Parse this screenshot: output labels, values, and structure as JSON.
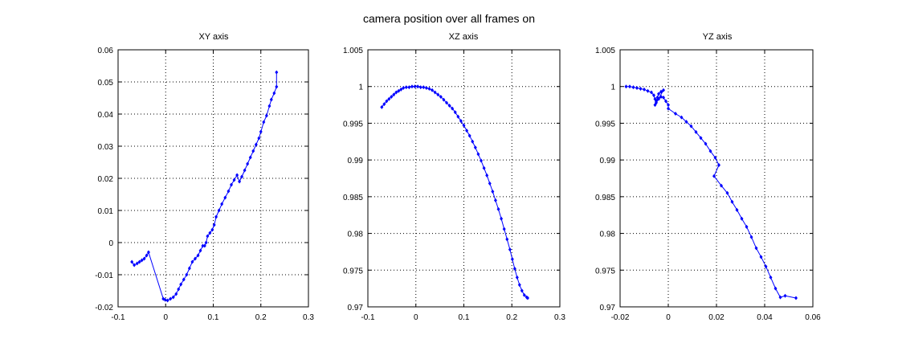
{
  "figure": {
    "title": "camera position over all frames on"
  },
  "chart_data": [
    {
      "type": "line",
      "title": "XY axis",
      "xlabel": "",
      "ylabel": "",
      "xlim": [
        -0.1,
        0.3
      ],
      "ylim": [
        -0.02,
        0.06
      ],
      "xticks": [
        "-0.1",
        "0",
        "0.1",
        "0.2",
        "0.3"
      ],
      "yticks": [
        "-0.02",
        "-0.01",
        "0",
        "0.01",
        "0.02",
        "0.03",
        "0.04",
        "0.05",
        "0.06"
      ],
      "grid": true,
      "marker": "dot",
      "color": "#0000ff",
      "series": [
        {
          "x": [
            0.233,
            0.233,
            0.228,
            0.222,
            0.218,
            0.212,
            0.206,
            0.2,
            0.196,
            0.19,
            0.184,
            0.178,
            0.172,
            0.166,
            0.16,
            0.155,
            0.15,
            0.144,
            0.138,
            0.132,
            0.125,
            0.118,
            0.112,
            0.106,
            0.102,
            0.098,
            0.093,
            0.088,
            0.085,
            0.082,
            0.078,
            0.073,
            0.068,
            0.062,
            0.056,
            0.05,
            0.044,
            0.038,
            0.032,
            0.027,
            0.022,
            0.016,
            0.01,
            0.004,
            -0.001,
            -0.005,
            -0.036,
            -0.04,
            -0.045,
            -0.05,
            -0.055,
            -0.06,
            -0.066,
            -0.071
          ],
          "y": [
            0.053,
            0.0485,
            0.0465,
            0.0445,
            0.0425,
            0.0395,
            0.0375,
            0.0345,
            0.0325,
            0.0305,
            0.0285,
            0.0265,
            0.0245,
            0.0225,
            0.0205,
            0.019,
            0.021,
            0.0195,
            0.018,
            0.016,
            0.014,
            0.012,
            0.01,
            0.008,
            0.0055,
            0.004,
            0.003,
            0.002,
            0.0,
            -0.001,
            -0.001,
            -0.0025,
            -0.004,
            -0.005,
            -0.006,
            -0.008,
            -0.01,
            -0.0115,
            -0.013,
            -0.0145,
            -0.016,
            -0.017,
            -0.0175,
            -0.018,
            -0.0178,
            -0.0175,
            -0.003,
            -0.004,
            -0.005,
            -0.0055,
            -0.006,
            -0.0065,
            -0.007,
            -0.006
          ]
        }
      ]
    },
    {
      "type": "line",
      "title": "XZ axis",
      "xlabel": "",
      "ylabel": "",
      "xlim": [
        -0.1,
        0.3
      ],
      "ylim": [
        0.97,
        1.005
      ],
      "xticks": [
        "-0.1",
        "0",
        "0.1",
        "0.2",
        "0.3"
      ],
      "yticks": [
        "0.97",
        "0.975",
        "0.98",
        "0.985",
        "0.99",
        "0.995",
        "1",
        "1.005"
      ],
      "grid": true,
      "marker": "dot",
      "color": "#0000ff",
      "series": [
        {
          "x": [
            -0.071,
            -0.066,
            -0.061,
            -0.056,
            -0.051,
            -0.046,
            -0.041,
            -0.036,
            -0.031,
            -0.026,
            -0.02,
            -0.014,
            -0.008,
            -0.002,
            0.004,
            0.01,
            0.016,
            0.022,
            0.028,
            0.034,
            0.04,
            0.046,
            0.052,
            0.058,
            0.064,
            0.07,
            0.076,
            0.082,
            0.088,
            0.094,
            0.1,
            0.106,
            0.112,
            0.118,
            0.124,
            0.13,
            0.136,
            0.142,
            0.148,
            0.154,
            0.16,
            0.166,
            0.172,
            0.178,
            0.184,
            0.19,
            0.196,
            0.201,
            0.206,
            0.211,
            0.216,
            0.221,
            0.226,
            0.231,
            0.233
          ],
          "y": [
            0.9972,
            0.9976,
            0.998,
            0.9983,
            0.9986,
            0.9989,
            0.9992,
            0.9994,
            0.9996,
            0.9998,
            0.9999,
            0.9999,
            1.0,
            1.0,
            1.0,
            0.9999,
            0.9999,
            0.9998,
            0.9997,
            0.9995,
            0.9992,
            0.9989,
            0.9986,
            0.9982,
            0.9978,
            0.9974,
            0.997,
            0.9965,
            0.9959,
            0.9953,
            0.9947,
            0.994,
            0.9933,
            0.9925,
            0.9917,
            0.9908,
            0.9899,
            0.9889,
            0.9879,
            0.9868,
            0.9857,
            0.9845,
            0.9833,
            0.982,
            0.9806,
            0.9792,
            0.9778,
            0.9765,
            0.9752,
            0.974,
            0.973,
            0.9722,
            0.9716,
            0.9713,
            0.9712
          ]
        }
      ]
    },
    {
      "type": "line",
      "title": "YZ axis",
      "xlabel": "",
      "ylabel": "",
      "xlim": [
        -0.02,
        0.06
      ],
      "ylim": [
        0.97,
        1.005
      ],
      "xticks": [
        "-0.02",
        "0",
        "0.02",
        "0.04",
        "0.06"
      ],
      "yticks": [
        "0.97",
        "0.975",
        "0.98",
        "0.985",
        "0.99",
        "0.995",
        "1",
        "1.005"
      ],
      "grid": true,
      "marker": "dot",
      "color": "#0000ff",
      "series": [
        {
          "x": [
            -0.0175,
            -0.016,
            -0.0145,
            -0.013,
            -0.0115,
            -0.01,
            -0.0085,
            -0.007,
            -0.006,
            -0.0055,
            -0.005,
            -0.0045,
            -0.004,
            -0.003,
            -0.002,
            -0.0055,
            -0.005,
            -0.004,
            -0.003,
            -0.002,
            -0.001,
            0.0,
            0.0,
            0.003,
            0.0055,
            0.0075,
            0.0095,
            0.0115,
            0.0135,
            0.0155,
            0.0175,
            0.0195,
            0.021,
            0.019,
            0.022,
            0.0245,
            0.0265,
            0.0285,
            0.0305,
            0.0325,
            0.0345,
            0.0365,
            0.0385,
            0.0405,
            0.0425,
            0.0445,
            0.0465,
            0.0485,
            0.053
          ],
          "y": [
            1.0,
            1.0,
            0.9999,
            0.9998,
            0.9997,
            0.9996,
            0.9994,
            0.9992,
            0.9988,
            0.9983,
            0.9978,
            0.9985,
            0.999,
            0.9993,
            0.9995,
            0.9975,
            0.998,
            0.9983,
            0.9986,
            0.9985,
            0.998,
            0.9975,
            0.997,
            0.9963,
            0.9958,
            0.9952,
            0.9946,
            0.9938,
            0.993,
            0.9922,
            0.9912,
            0.9903,
            0.9893,
            0.9878,
            0.9865,
            0.9855,
            0.9843,
            0.9832,
            0.982,
            0.9809,
            0.9795,
            0.978,
            0.9768,
            0.9755,
            0.974,
            0.9725,
            0.9713,
            0.9715,
            0.9712
          ]
        }
      ]
    }
  ]
}
